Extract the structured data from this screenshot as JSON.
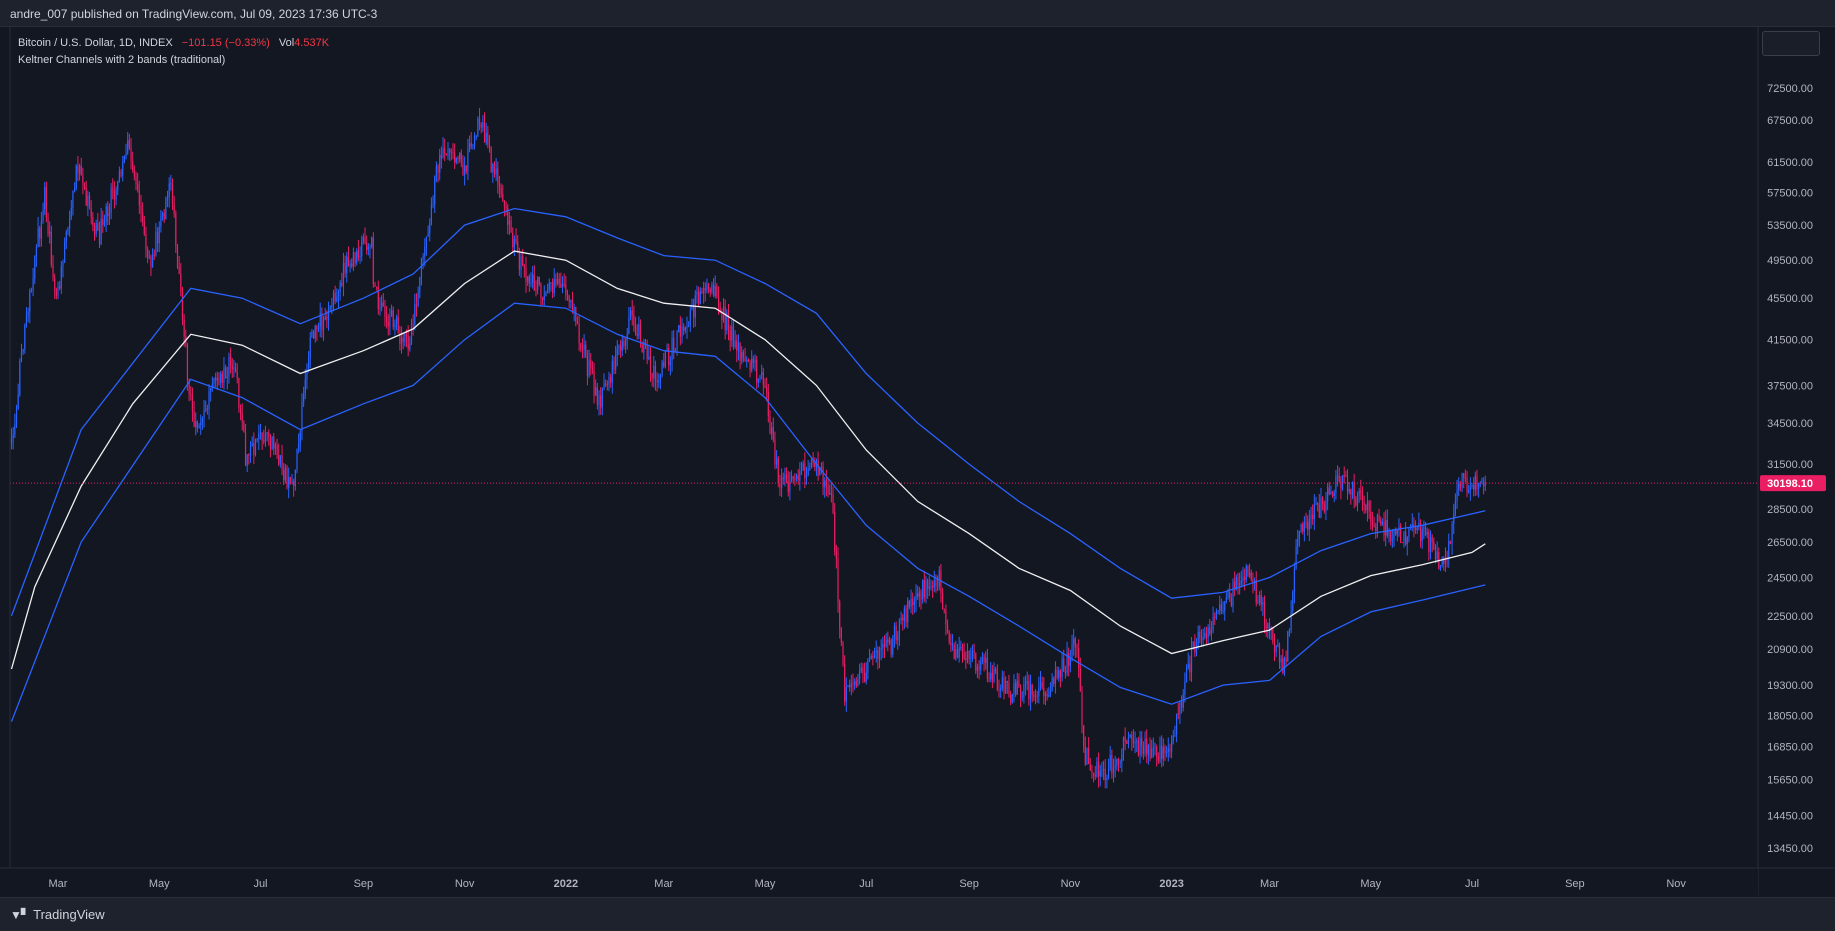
{
  "header": {
    "published": "andre_007 published on TradingView.com, Jul 09, 2023 17:36 UTC-3"
  },
  "legend": {
    "symbol": "Bitcoin / U.S. Dollar, 1D, INDEX",
    "change": "−101.15 (−0.33%)",
    "volume_label": "Vol",
    "volume_value": "4.537K",
    "indicator": "Keltner Channels with 2 bands (traditional)"
  },
  "footer": {
    "brand": "TradingView",
    "logo_icon": "tradingview-logo-icon"
  },
  "colors": {
    "background": "#131722",
    "up": "#2962ff",
    "down": "#e91e63",
    "channel_band": "#2962ff",
    "channel_mid": "#f0f0f0",
    "price_tag": "#e91e63"
  },
  "chart_data": {
    "type": "candlestick",
    "price_scale": "log",
    "y_ticks": [
      72500,
      67500,
      61500,
      57500,
      53500,
      49500,
      45500,
      41500,
      37500,
      34500,
      31500,
      28500,
      26500,
      24500,
      22500,
      20900,
      19300,
      18050,
      16850,
      15650,
      14450,
      13450
    ],
    "y_tick_labels": [
      "72500.00",
      "67500.00",
      "61500.00",
      "57500.00",
      "53500.00",
      "49500.00",
      "45500.00",
      "41500.00",
      "37500.00",
      "34500.00",
      "31500.00",
      "28500.00",
      "26500.00",
      "24500.00",
      "22500.00",
      "20900.00",
      "19300.00",
      "18050.00",
      "16850.00",
      "15650.00",
      "14450.00",
      "13450.00"
    ],
    "x_ticks": [
      "2021-03-01",
      "2021-05-01",
      "2021-07-01",
      "2021-09-01",
      "2021-11-01",
      "2022-01-01",
      "2022-03-01",
      "2022-05-01",
      "2022-07-01",
      "2022-09-01",
      "2022-11-01",
      "2023-01-01",
      "2023-03-01",
      "2023-05-01",
      "2023-07-01",
      "2023-09-01",
      "2023-11-01"
    ],
    "x_tick_labels": [
      "Mar",
      "May",
      "Jul",
      "Sep",
      "Nov",
      "2022",
      "Mar",
      "May",
      "Jul",
      "Sep",
      "Nov",
      "2023",
      "Mar",
      "May",
      "Jul",
      "Sep",
      "Nov"
    ],
    "last_price": 30198.1,
    "last_price_label": "30198.10",
    "price_path": [
      [
        "2021-02-01",
        33000
      ],
      [
        "2021-02-10",
        44000
      ],
      [
        "2021-02-21",
        57000
      ],
      [
        "2021-02-28",
        45000
      ],
      [
        "2021-03-13",
        61000
      ],
      [
        "2021-03-25",
        52000
      ],
      [
        "2021-04-13",
        64000
      ],
      [
        "2021-04-25",
        49000
      ],
      [
        "2021-05-08",
        58000
      ],
      [
        "2021-05-12",
        50000
      ],
      [
        "2021-05-19",
        37000
      ],
      [
        "2021-05-23",
        34000
      ],
      [
        "2021-06-01",
        37000
      ],
      [
        "2021-06-15",
        40000
      ],
      [
        "2021-06-22",
        32000
      ],
      [
        "2021-07-05",
        34000
      ],
      [
        "2021-07-20",
        29800
      ],
      [
        "2021-07-31",
        41000
      ],
      [
        "2021-08-22",
        49000
      ],
      [
        "2021-09-06",
        52000
      ],
      [
        "2021-09-07",
        46000
      ],
      [
        "2021-09-28",
        41000
      ],
      [
        "2021-10-15",
        60000
      ],
      [
        "2021-10-20",
        64000
      ],
      [
        "2021-11-01",
        61000
      ],
      [
        "2021-11-10",
        67500
      ],
      [
        "2021-11-26",
        55000
      ],
      [
        "2021-12-04",
        49000
      ],
      [
        "2021-12-20",
        46000
      ],
      [
        "2022-01-01",
        47000
      ],
      [
        "2022-01-10",
        41000
      ],
      [
        "2022-01-22",
        36000
      ],
      [
        "2022-02-10",
        44000
      ],
      [
        "2022-02-24",
        38000
      ],
      [
        "2022-03-28",
        47500
      ],
      [
        "2022-04-15",
        40500
      ],
      [
        "2022-04-30",
        38000
      ],
      [
        "2022-05-10",
        30000
      ],
      [
        "2022-05-31",
        31500
      ],
      [
        "2022-06-10",
        29500
      ],
      [
        "2022-06-18",
        19000
      ],
      [
        "2022-07-01",
        20000
      ],
      [
        "2022-07-15",
        21000
      ],
      [
        "2022-07-30",
        23500
      ],
      [
        "2022-08-14",
        24500
      ],
      [
        "2022-08-20",
        21000
      ],
      [
        "2022-09-13",
        20000
      ],
      [
        "2022-09-25",
        19000
      ],
      [
        "2022-10-20",
        19200
      ],
      [
        "2022-11-05",
        21200
      ],
      [
        "2022-11-09",
        16500
      ],
      [
        "2022-11-21",
        15800
      ],
      [
        "2022-12-05",
        17000
      ],
      [
        "2022-12-30",
        16500
      ],
      [
        "2023-01-14",
        21000
      ],
      [
        "2023-02-01",
        23000
      ],
      [
        "2023-02-16",
        24800
      ],
      [
        "2023-03-10",
        20000
      ],
      [
        "2023-03-18",
        27000
      ],
      [
        "2023-04-14",
        30500
      ],
      [
        "2023-05-01",
        28000
      ],
      [
        "2023-05-15",
        27000
      ],
      [
        "2023-06-01",
        27000
      ],
      [
        "2023-06-15",
        25000
      ],
      [
        "2023-06-22",
        30000
      ],
      [
        "2023-07-04",
        30500
      ],
      [
        "2023-07-09",
        30198
      ]
    ],
    "channel_middle": [
      [
        "2021-02-01",
        20000
      ],
      [
        "2021-02-15",
        24000
      ],
      [
        "2021-03-15",
        30000
      ],
      [
        "2021-04-15",
        36000
      ],
      [
        "2021-05-20",
        42000
      ],
      [
        "2021-06-20",
        41000
      ],
      [
        "2021-07-25",
        38500
      ],
      [
        "2021-09-01",
        40500
      ],
      [
        "2021-10-01",
        42500
      ],
      [
        "2021-11-01",
        47000
      ],
      [
        "2021-12-01",
        50500
      ],
      [
        "2022-01-01",
        49500
      ],
      [
        "2022-02-01",
        46500
      ],
      [
        "2022-03-01",
        45000
      ],
      [
        "2022-04-01",
        44500
      ],
      [
        "2022-05-01",
        41500
      ],
      [
        "2022-06-01",
        37500
      ],
      [
        "2022-07-01",
        32500
      ],
      [
        "2022-08-01",
        29000
      ],
      [
        "2022-09-01",
        27000
      ],
      [
        "2022-10-01",
        25000
      ],
      [
        "2022-11-01",
        23800
      ],
      [
        "2022-12-01",
        22000
      ],
      [
        "2023-01-01",
        20700
      ],
      [
        "2023-02-01",
        21300
      ],
      [
        "2023-03-01",
        21800
      ],
      [
        "2023-04-01",
        23500
      ],
      [
        "2023-05-01",
        24600
      ],
      [
        "2023-06-01",
        25200
      ],
      [
        "2023-07-01",
        25900
      ],
      [
        "2023-07-09",
        26400
      ]
    ],
    "channel_upper": [
      [
        "2021-02-01",
        22500
      ],
      [
        "2021-03-15",
        34000
      ],
      [
        "2021-05-20",
        46500
      ],
      [
        "2021-06-20",
        45500
      ],
      [
        "2021-07-25",
        43000
      ],
      [
        "2021-09-01",
        45500
      ],
      [
        "2021-10-01",
        48000
      ],
      [
        "2021-11-01",
        53500
      ],
      [
        "2021-12-01",
        55500
      ],
      [
        "2022-01-01",
        54500
      ],
      [
        "2022-02-01",
        52000
      ],
      [
        "2022-03-01",
        50000
      ],
      [
        "2022-04-01",
        49500
      ],
      [
        "2022-05-01",
        47000
      ],
      [
        "2022-06-01",
        44000
      ],
      [
        "2022-07-01",
        38500
      ],
      [
        "2022-08-01",
        34500
      ],
      [
        "2022-09-01",
        31500
      ],
      [
        "2022-10-01",
        29000
      ],
      [
        "2022-11-01",
        27000
      ],
      [
        "2022-12-01",
        25000
      ],
      [
        "2023-01-01",
        23400
      ],
      [
        "2023-02-01",
        23700
      ],
      [
        "2023-03-01",
        24500
      ],
      [
        "2023-04-01",
        26000
      ],
      [
        "2023-05-01",
        27000
      ],
      [
        "2023-06-01",
        27500
      ],
      [
        "2023-07-09",
        28400
      ]
    ],
    "channel_lower": [
      [
        "2021-02-01",
        17800
      ],
      [
        "2021-03-15",
        26500
      ],
      [
        "2021-05-20",
        38000
      ],
      [
        "2021-06-20",
        36500
      ],
      [
        "2021-07-25",
        34000
      ],
      [
        "2021-09-01",
        36000
      ],
      [
        "2021-10-01",
        37500
      ],
      [
        "2021-11-01",
        41500
      ],
      [
        "2021-12-01",
        45000
      ],
      [
        "2022-01-01",
        44500
      ],
      [
        "2022-02-01",
        42000
      ],
      [
        "2022-03-01",
        40500
      ],
      [
        "2022-04-01",
        40000
      ],
      [
        "2022-05-01",
        36500
      ],
      [
        "2022-06-01",
        31500
      ],
      [
        "2022-07-01",
        27500
      ],
      [
        "2022-08-01",
        25000
      ],
      [
        "2022-09-01",
        23500
      ],
      [
        "2022-10-01",
        22000
      ],
      [
        "2022-11-01",
        20500
      ],
      [
        "2022-12-01",
        19200
      ],
      [
        "2023-01-01",
        18500
      ],
      [
        "2023-02-01",
        19300
      ],
      [
        "2023-03-01",
        19500
      ],
      [
        "2023-04-01",
        21500
      ],
      [
        "2023-05-01",
        22700
      ],
      [
        "2023-06-01",
        23300
      ],
      [
        "2023-07-09",
        24100
      ]
    ]
  }
}
